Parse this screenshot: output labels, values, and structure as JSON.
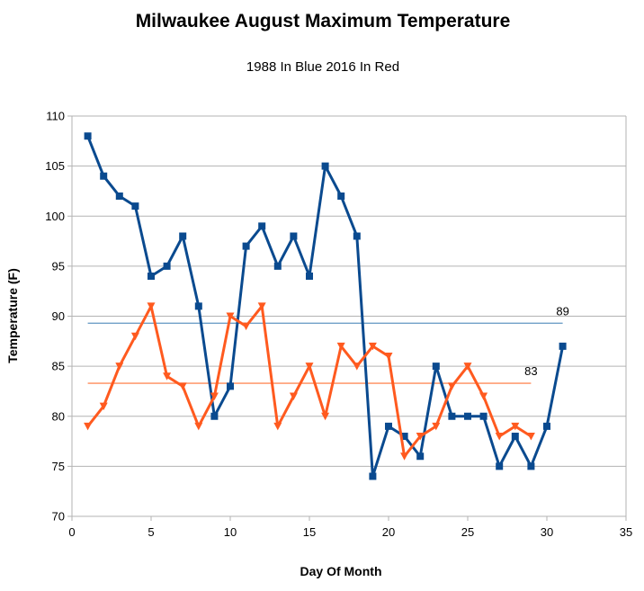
{
  "chart_data": {
    "type": "line",
    "title": "Milwaukee August Maximum Temperature",
    "subtitle": "1988 In Blue   2016 In Red",
    "xlabel": "Day Of Month",
    "ylabel": "Temperature (F)",
    "xlim": [
      0,
      35
    ],
    "ylim": [
      70,
      110
    ],
    "xticks": [
      0,
      5,
      10,
      15,
      20,
      25,
      30,
      35
    ],
    "yticks": [
      70,
      75,
      80,
      85,
      90,
      95,
      100,
      105,
      110
    ],
    "grid": true,
    "legend": "none",
    "series": [
      {
        "color": "#0a4a8f",
        "marker": "square",
        "x": [
          1,
          2,
          3,
          4,
          5,
          6,
          7,
          8,
          9,
          10,
          11,
          12,
          13,
          14,
          15,
          16,
          17,
          18,
          19,
          20,
          21,
          22,
          23,
          24,
          25,
          26,
          27,
          28,
          29,
          30,
          31
        ],
        "y": [
          108,
          104,
          102,
          101,
          94,
          95,
          98,
          91,
          80,
          83,
          97,
          99,
          95,
          98,
          94,
          105,
          102,
          98,
          74,
          79,
          78,
          76,
          85,
          80,
          80,
          80,
          75,
          78,
          75,
          79,
          87
        ]
      },
      {
        "color": "#ff5a1f",
        "marker": "triangle-down",
        "x": [
          1,
          2,
          3,
          4,
          5,
          6,
          7,
          8,
          9,
          10,
          11,
          12,
          13,
          14,
          15,
          16,
          17,
          18,
          19,
          20,
          21,
          22,
          23,
          24,
          25,
          26,
          27,
          28,
          29
        ],
        "y": [
          79,
          81,
          85,
          88,
          91,
          84,
          83,
          79,
          82,
          90,
          89,
          91,
          79,
          82,
          85,
          80,
          87,
          85,
          87,
          86,
          76,
          78,
          79,
          83,
          85,
          82,
          78,
          79,
          78
        ]
      }
    ],
    "reference_lines": [
      {
        "value": 89.3,
        "x_start": 1,
        "x_end": 31,
        "color": "#6fa0c8",
        "label": "89",
        "label_x": 31
      },
      {
        "value": 83.3,
        "x_start": 1,
        "x_end": 29,
        "color": "#ff8c5a",
        "label": "83",
        "label_x": 29
      }
    ]
  }
}
